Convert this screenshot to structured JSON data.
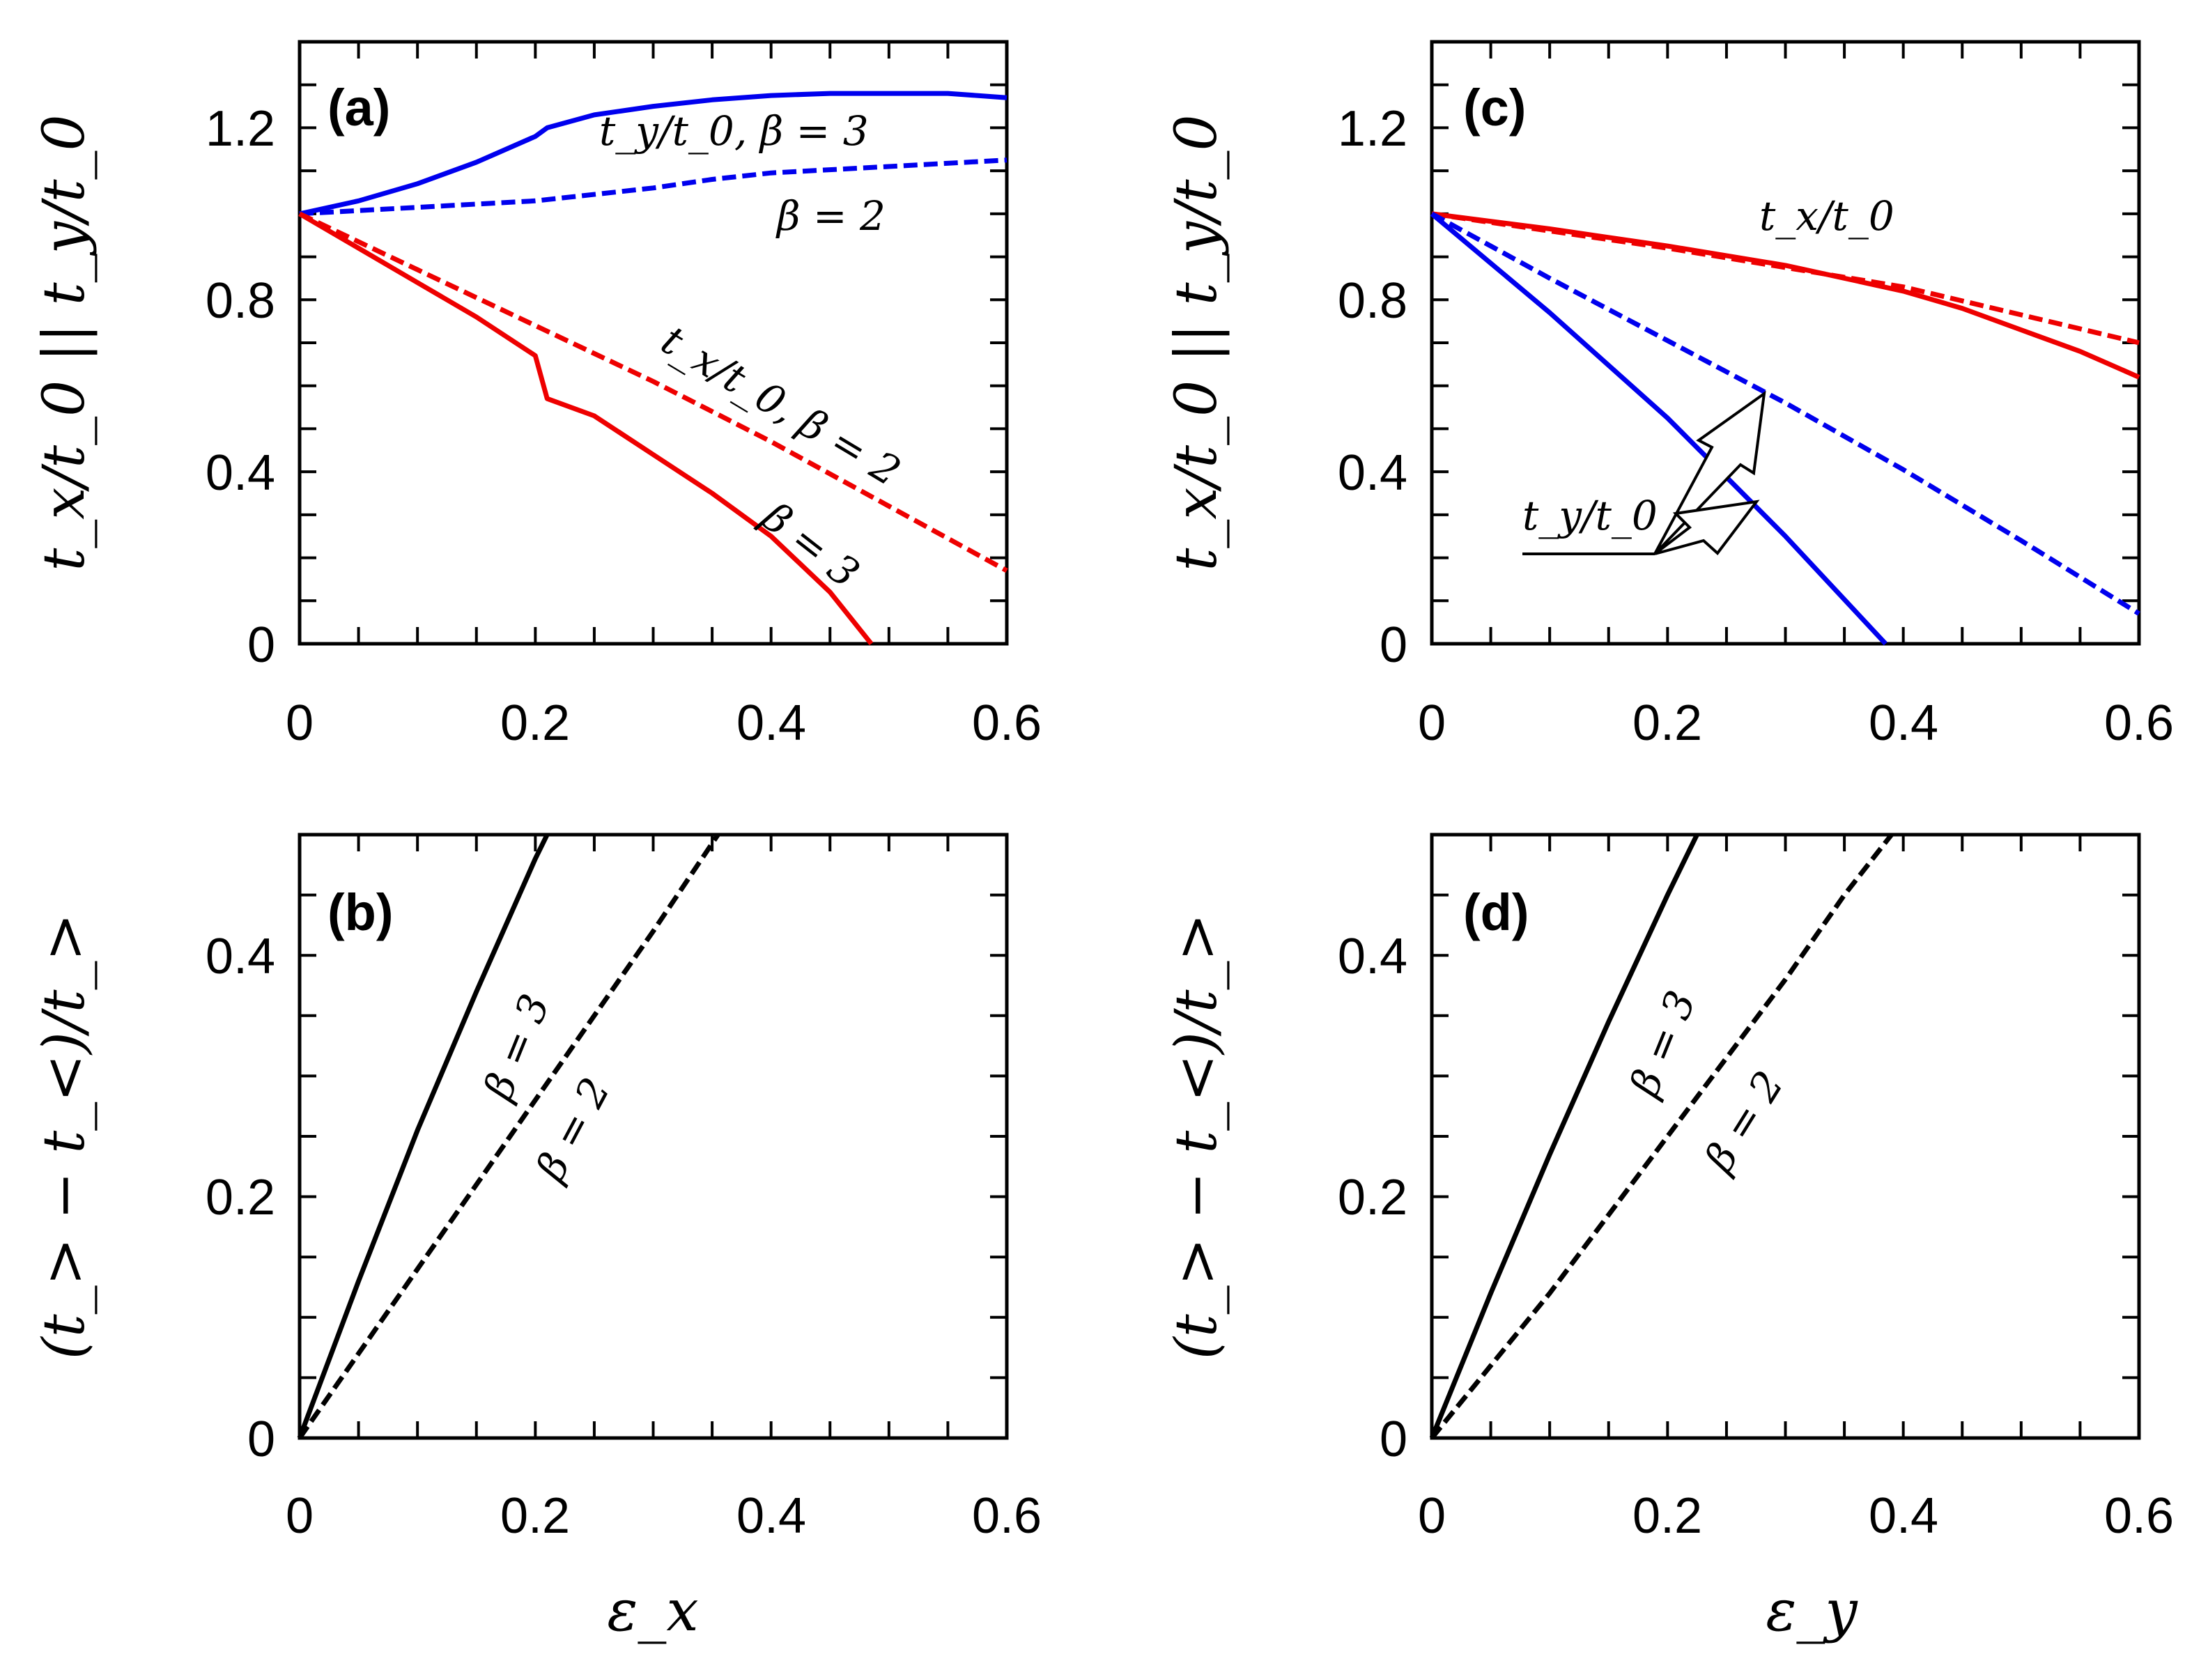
{
  "chart_data": [
    {
      "id": "a",
      "type": "line",
      "label": "(a)",
      "xlim": [
        0,
        0.6
      ],
      "ylim": [
        0,
        1.4
      ],
      "xticks": [
        "0",
        "0.2",
        "0.4",
        "0.6"
      ],
      "yticks": [
        "0",
        "0.4",
        "0.8",
        "1.2"
      ],
      "xlabel": "",
      "ylabel": "t_x/t_0 || t_y/t_0",
      "annotations": [
        "t_y/t_0,  β = 3",
        "β = 2",
        "t_x/t_0,  β = 2",
        "β = 3"
      ],
      "series": [
        {
          "name": "t_y/t_0, β = 3",
          "color": "#0000ee",
          "dash": "solid",
          "x": [
            0,
            0.05,
            0.1,
            0.15,
            0.2,
            0.21,
            0.25,
            0.3,
            0.35,
            0.4,
            0.45,
            0.5,
            0.55,
            0.6
          ],
          "y": [
            1.0,
            1.03,
            1.07,
            1.12,
            1.18,
            1.2,
            1.23,
            1.25,
            1.265,
            1.275,
            1.28,
            1.28,
            1.28,
            1.27
          ]
        },
        {
          "name": "t_y/t_0, β = 2",
          "color": "#0000ee",
          "dash": "dashed",
          "x": [
            0,
            0.1,
            0.2,
            0.3,
            0.35,
            0.4,
            0.5,
            0.6
          ],
          "y": [
            1.0,
            1.015,
            1.03,
            1.06,
            1.08,
            1.095,
            1.11,
            1.125
          ]
        },
        {
          "name": "t_x/t_0, β = 2",
          "color": "#ee0000",
          "dash": "dashed",
          "x": [
            0,
            0.1,
            0.2,
            0.3,
            0.4,
            0.5,
            0.6
          ],
          "y": [
            1.0,
            0.87,
            0.74,
            0.61,
            0.47,
            0.32,
            0.17
          ]
        },
        {
          "name": "t_x/t_0, β = 3",
          "color": "#ee0000",
          "dash": "solid",
          "x": [
            0,
            0.05,
            0.1,
            0.15,
            0.2,
            0.21,
            0.25,
            0.3,
            0.35,
            0.4,
            0.45,
            0.485
          ],
          "y": [
            1.0,
            0.92,
            0.84,
            0.76,
            0.67,
            0.57,
            0.53,
            0.44,
            0.35,
            0.25,
            0.12,
            0.0
          ]
        }
      ]
    },
    {
      "id": "b",
      "type": "line",
      "label": "(b)",
      "xlim": [
        0,
        0.6
      ],
      "ylim": [
        0,
        0.5
      ],
      "xticks": [
        "0",
        "0.2",
        "0.4",
        "0.6"
      ],
      "yticks": [
        "0",
        "0.2",
        "0.4"
      ],
      "xlabel": "ε_x",
      "ylabel": "(t_> − t_<)/t_>",
      "annotations": [
        "β = 3",
        "β = 2"
      ],
      "series": [
        {
          "name": "β = 3",
          "color": "#000000",
          "dash": "solid",
          "x": [
            0,
            0.05,
            0.1,
            0.15,
            0.2,
            0.21
          ],
          "y": [
            0.0,
            0.13,
            0.255,
            0.37,
            0.48,
            0.5
          ]
        },
        {
          "name": "β = 2",
          "color": "#000000",
          "dash": "dashed",
          "x": [
            0,
            0.05,
            0.1,
            0.15,
            0.2,
            0.25,
            0.3,
            0.355
          ],
          "y": [
            0.0,
            0.07,
            0.14,
            0.21,
            0.28,
            0.35,
            0.42,
            0.5
          ]
        }
      ]
    },
    {
      "id": "c",
      "type": "line",
      "label": "(c)",
      "xlim": [
        0,
        0.6
      ],
      "ylim": [
        0,
        1.4
      ],
      "xticks": [
        "0",
        "0.2",
        "0.4",
        "0.6"
      ],
      "yticks": [
        "0",
        "0.4",
        "0.8",
        "1.2"
      ],
      "xlabel": "",
      "ylabel": "t_x/t_0 || t_y/t_0",
      "annotations": [
        "t_x/t_0",
        "t_y/t_0"
      ],
      "series": [
        {
          "name": "t_x/t_0, β = 3",
          "color": "#ee0000",
          "dash": "solid",
          "x": [
            0,
            0.1,
            0.2,
            0.3,
            0.4,
            0.45,
            0.5,
            0.55,
            0.6
          ],
          "y": [
            1.0,
            0.965,
            0.925,
            0.88,
            0.82,
            0.78,
            0.73,
            0.68,
            0.62
          ]
        },
        {
          "name": "t_x/t_0, β = 2",
          "color": "#ee0000",
          "dash": "dashed",
          "x": [
            0,
            0.1,
            0.2,
            0.3,
            0.4,
            0.5,
            0.6
          ],
          "y": [
            1.0,
            0.96,
            0.92,
            0.875,
            0.83,
            0.765,
            0.7
          ]
        },
        {
          "name": "t_y/t_0, β = 3",
          "color": "#0000ee",
          "dash": "solid",
          "x": [
            0,
            0.1,
            0.2,
            0.3,
            0.385
          ],
          "y": [
            1.0,
            0.77,
            0.525,
            0.25,
            0.0
          ]
        },
        {
          "name": "t_y/t_0, β = 2",
          "color": "#0000ee",
          "dash": "dashed",
          "x": [
            0,
            0.1,
            0.2,
            0.3,
            0.4,
            0.5,
            0.6
          ],
          "y": [
            1.0,
            0.85,
            0.705,
            0.56,
            0.405,
            0.24,
            0.07
          ]
        }
      ]
    },
    {
      "id": "d",
      "type": "line",
      "label": "(d)",
      "xlim": [
        0,
        0.6
      ],
      "ylim": [
        0,
        0.5
      ],
      "xticks": [
        "0",
        "0.2",
        "0.4",
        "0.6"
      ],
      "yticks": [
        "0",
        "0.2",
        "0.4"
      ],
      "xlabel": "ε_y",
      "ylabel": "(t_> − t_<)/t_>",
      "annotations": [
        "β = 3",
        "β = 2"
      ],
      "series": [
        {
          "name": "β = 3",
          "color": "#000000",
          "dash": "solid",
          "x": [
            0,
            0.05,
            0.1,
            0.15,
            0.2,
            0.225
          ],
          "y": [
            0.0,
            0.12,
            0.235,
            0.345,
            0.45,
            0.5
          ]
        },
        {
          "name": "β = 2",
          "color": "#000000",
          "dash": "dashed",
          "x": [
            0,
            0.05,
            0.1,
            0.15,
            0.2,
            0.25,
            0.3,
            0.35,
            0.39
          ],
          "y": [
            0.0,
            0.06,
            0.12,
            0.185,
            0.25,
            0.315,
            0.38,
            0.45,
            0.5
          ]
        }
      ]
    }
  ]
}
